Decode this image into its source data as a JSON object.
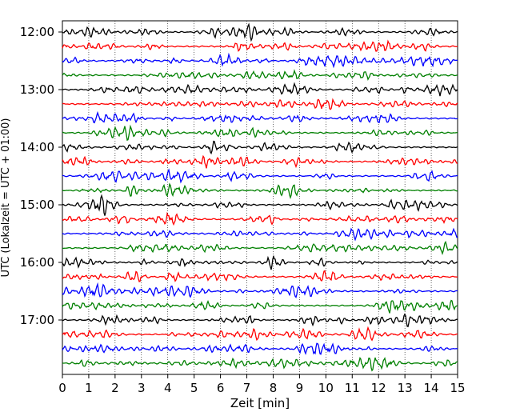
{
  "chart_data": {
    "type": "line",
    "title": "",
    "xlabel": "Zeit  [min]",
    "ylabel": "UTC (Lokalzeit = UTC + 01:00)",
    "xlim": [
      0,
      15
    ],
    "x_ticks": [
      "0",
      "1",
      "2",
      "3",
      "4",
      "5",
      "6",
      "7",
      "8",
      "9",
      "10",
      "11",
      "12",
      "13",
      "14",
      "15"
    ],
    "y_ticks": [
      "12:00",
      "13:00",
      "14:00",
      "15:00",
      "16:00",
      "17:00"
    ],
    "trace_interval_min": 15,
    "trace_start": "12:00",
    "trace_count": 24,
    "trace_colors": [
      "#000000",
      "#ff0000",
      "#0000ff",
      "#008000"
    ],
    "vertical_grid": "dotted",
    "rows": [
      "12:00",
      "12:15",
      "12:30",
      "12:45",
      "13:00",
      "13:15",
      "13:30",
      "13:45",
      "14:00",
      "14:15",
      "14:30",
      "14:45",
      "15:00",
      "15:15",
      "15:30",
      "15:45",
      "16:00",
      "16:15",
      "16:30",
      "16:45",
      "17:00",
      "17:15",
      "17:30",
      "17:45"
    ]
  }
}
